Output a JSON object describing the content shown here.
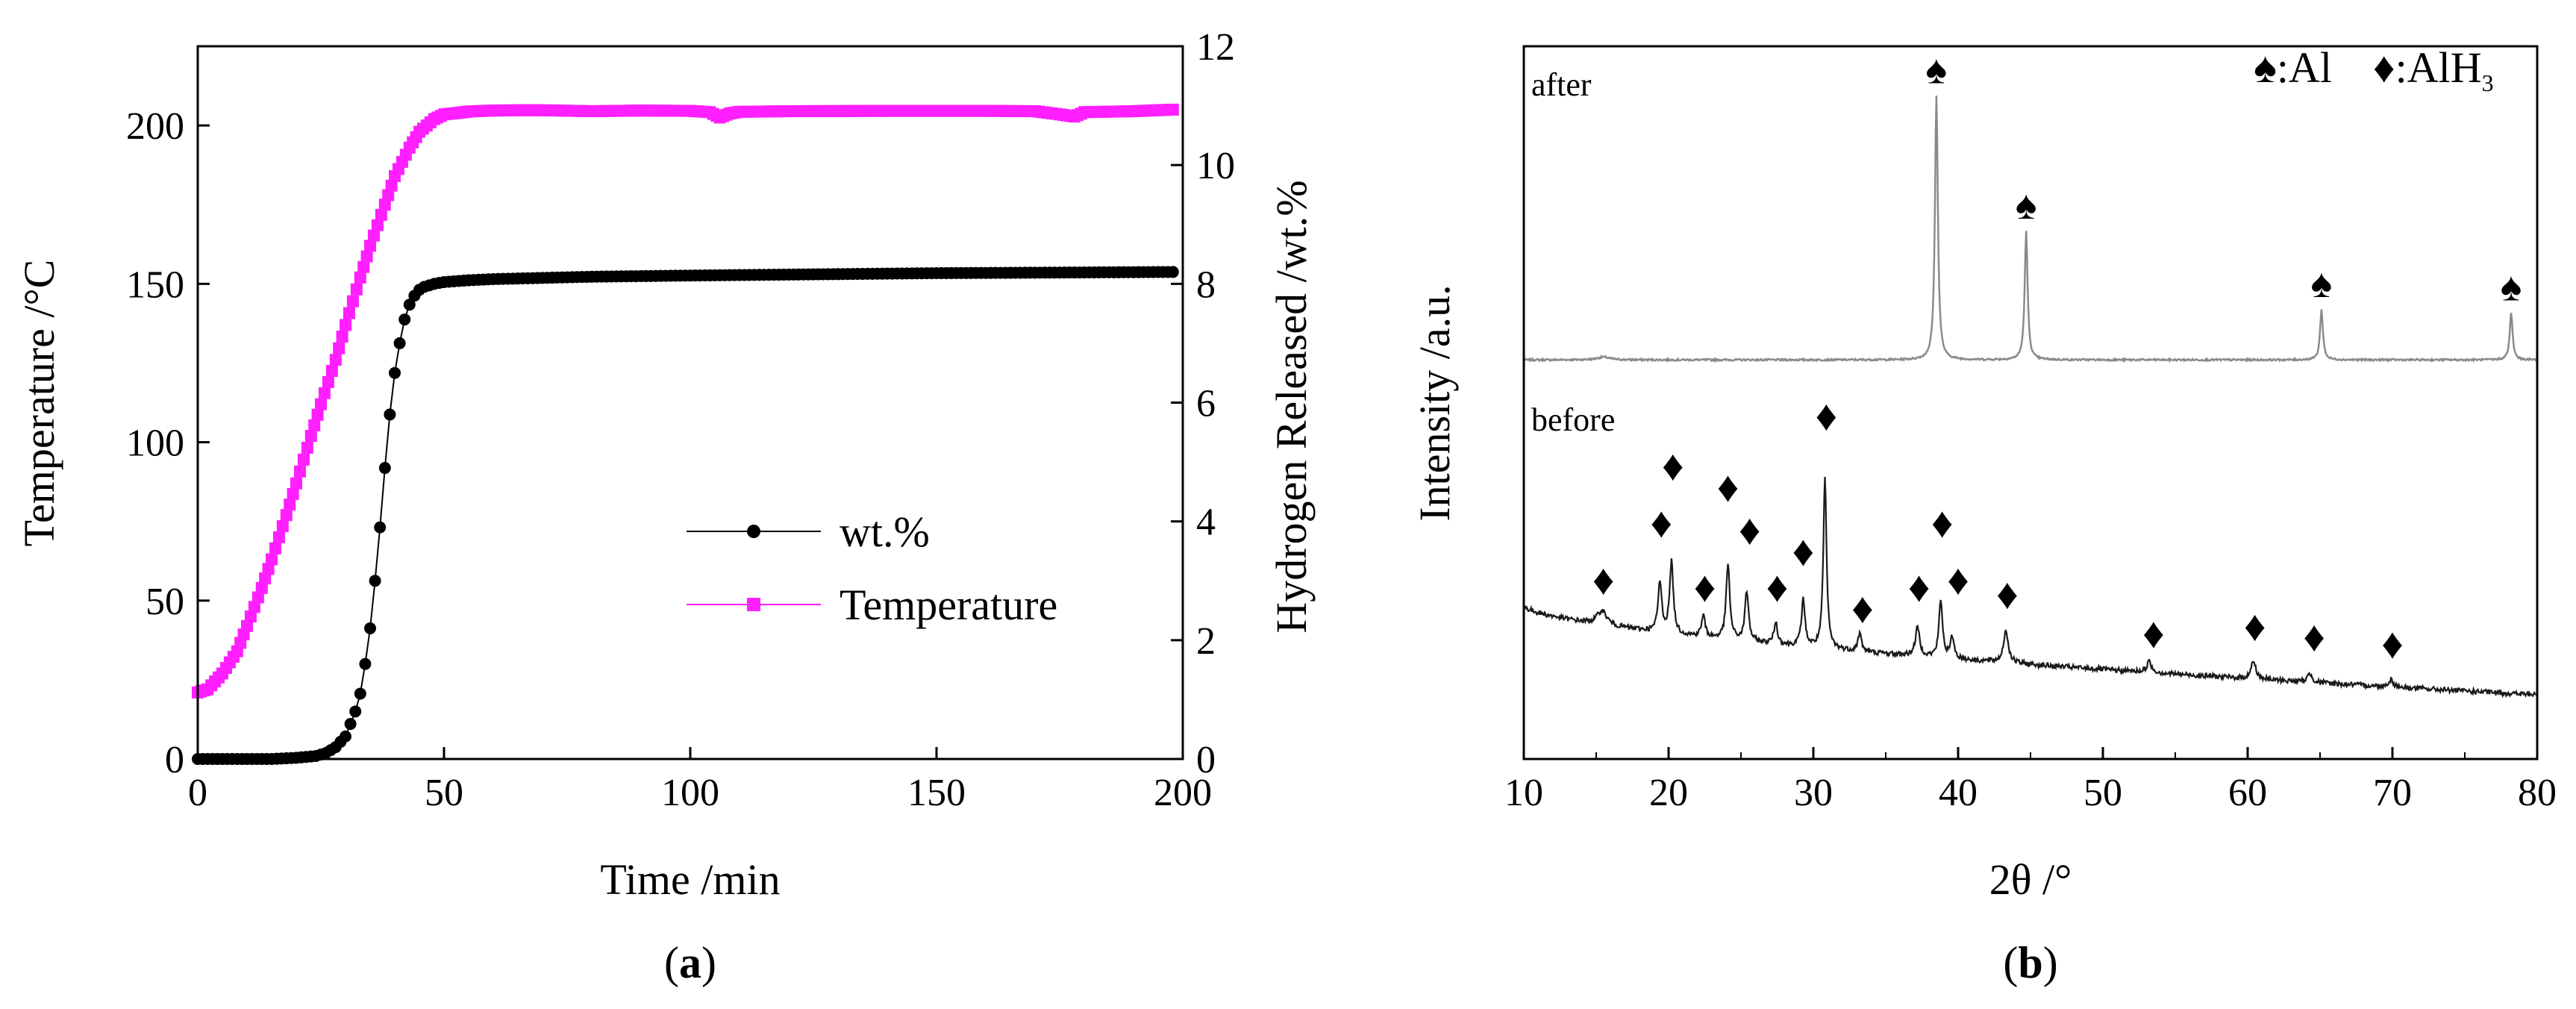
{
  "chart_data": [
    {
      "id": "a",
      "type": "line",
      "panel_label_open": "(",
      "panel_label_letter": "a",
      "panel_label_close": ")",
      "xlabel": "Time /min",
      "ylabel": "Temperature /°C",
      "y2label": "Hydrogen Released /wt.%",
      "xlim": [
        0,
        200
      ],
      "ylim": [
        0,
        225
      ],
      "y2lim": [
        0,
        12
      ],
      "xticks": [
        0,
        50,
        100,
        150,
        200
      ],
      "yticks": [
        0,
        50,
        100,
        150,
        200
      ],
      "y2ticks": [
        0,
        2,
        4,
        6,
        8,
        10,
        12
      ],
      "legend_position": "center-right",
      "series": [
        {
          "name": "wt.%",
          "axis": "right",
          "marker": "circle",
          "color": "#000000",
          "x": [
            0,
            5,
            10,
            15,
            20,
            24,
            26,
            28,
            30,
            32,
            33,
            34,
            35,
            36,
            37,
            38,
            39,
            40,
            41,
            42,
            43,
            44,
            45,
            46,
            48,
            50,
            55,
            60,
            70,
            80,
            100,
            125,
            150,
            175,
            198
          ],
          "y": [
            0,
            0,
            0,
            0,
            0.02,
            0.05,
            0.1,
            0.2,
            0.38,
            0.8,
            1.1,
            1.6,
            2.2,
            3.0,
            3.9,
            4.9,
            5.8,
            6.5,
            7.0,
            7.4,
            7.65,
            7.8,
            7.9,
            7.95,
            8.0,
            8.03,
            8.06,
            8.08,
            8.1,
            8.12,
            8.14,
            8.16,
            8.18,
            8.19,
            8.2
          ]
        },
        {
          "name": "Temperature",
          "axis": "left",
          "marker": "square",
          "color": "#ff1fff",
          "x": [
            0,
            2,
            5,
            8,
            10,
            13,
            15,
            18,
            20,
            23,
            25,
            28,
            30,
            33,
            35,
            38,
            40,
            43,
            45,
            48,
            50,
            53,
            55,
            58,
            60,
            65,
            70,
            80,
            90,
            100,
            104,
            106,
            108,
            110,
            120,
            140,
            160,
            170,
            175,
            178,
            180,
            190,
            198
          ],
          "y": [
            21,
            22,
            27,
            34,
            42,
            54,
            63,
            77,
            87,
            102,
            112,
            126,
            137,
            152,
            162,
            175,
            184,
            193,
            198,
            202,
            203.5,
            204,
            204.4,
            204.6,
            204.7,
            204.8,
            204.8,
            204.5,
            204.7,
            204.6,
            204.2,
            202.5,
            203.8,
            204.3,
            204.5,
            204.6,
            204.6,
            204.5,
            203.5,
            202.8,
            204.2,
            204.5,
            205
          ]
        }
      ]
    },
    {
      "id": "b",
      "type": "line",
      "panel_label_open": "(",
      "panel_label_letter": "b",
      "panel_label_close": ")",
      "xlabel": "2θ /°",
      "ylabel": "Intensity /a.u.",
      "xlim": [
        10,
        80
      ],
      "ylim": [
        0,
        100
      ],
      "xticks": [
        10,
        20,
        30,
        40,
        50,
        60,
        70,
        80
      ],
      "yticks": [],
      "legend_position": "top-right",
      "legend": {
        "al_symbol": "♠",
        "al_text": ":Al",
        "alh3_symbol": "♦",
        "alh3_text_main": ":AlH",
        "alh3_text_sub": "3"
      },
      "series": [
        {
          "name": "after",
          "color": "#8a8a8a",
          "baseline": 56,
          "peaks": [
            {
              "x": 15.5,
              "h": 0.4,
              "w": 0.5
            },
            {
              "x": 38.5,
              "h": 37,
              "w": 0.12
            },
            {
              "x": 44.7,
              "h": 18,
              "w": 0.12
            },
            {
              "x": 65.1,
              "h": 7,
              "w": 0.12
            },
            {
              "x": 78.2,
              "h": 6.5,
              "w": 0.12
            }
          ],
          "markers": [
            {
              "x": 38.5,
              "symbol": "♠"
            },
            {
              "x": 44.7,
              "symbol": "♠"
            },
            {
              "x": 65.1,
              "symbol": "♠"
            },
            {
              "x": 78.2,
              "symbol": "♠"
            }
          ]
        },
        {
          "name": "before",
          "color": "#1a1a1a",
          "baseline_start": 21.5,
          "baseline_end": 9,
          "peaks": [
            {
              "x": 15.4,
              "h": 2,
              "w": 0.4
            },
            {
              "x": 19.4,
              "h": 7,
              "w": 0.15
            },
            {
              "x": 20.2,
              "h": 10,
              "w": 0.15
            },
            {
              "x": 22.4,
              "h": 3,
              "w": 0.15
            },
            {
              "x": 24.1,
              "h": 10.5,
              "w": 0.15
            },
            {
              "x": 25.4,
              "h": 7,
              "w": 0.15
            },
            {
              "x": 27.4,
              "h": 3,
              "w": 0.15
            },
            {
              "x": 29.3,
              "h": 6.5,
              "w": 0.15
            },
            {
              "x": 30.8,
              "h": 24,
              "w": 0.13
            },
            {
              "x": 33.2,
              "h": 2.5,
              "w": 0.15
            },
            {
              "x": 37.2,
              "h": 4,
              "w": 0.18
            },
            {
              "x": 38.8,
              "h": 8,
              "w": 0.15
            },
            {
              "x": 39.6,
              "h": 3,
              "w": 0.15
            },
            {
              "x": 43.3,
              "h": 4.5,
              "w": 0.2
            },
            {
              "x": 53.2,
              "h": 1.5,
              "w": 0.2
            },
            {
              "x": 60.4,
              "h": 2.5,
              "w": 0.2
            },
            {
              "x": 64.3,
              "h": 1.2,
              "w": 0.2
            },
            {
              "x": 69.9,
              "h": 1,
              "w": 0.2
            }
          ],
          "markers": [
            {
              "x": 15.5,
              "y": 25.0,
              "symbol": "♦"
            },
            {
              "x": 19.5,
              "y": 33.0,
              "symbol": "♦"
            },
            {
              "x": 20.3,
              "y": 41.0,
              "symbol": "♦"
            },
            {
              "x": 22.5,
              "y": 24.0,
              "symbol": "♦"
            },
            {
              "x": 24.1,
              "y": 38.0,
              "symbol": "♦"
            },
            {
              "x": 25.6,
              "y": 32.0,
              "symbol": "♦"
            },
            {
              "x": 27.5,
              "y": 24.0,
              "symbol": "♦"
            },
            {
              "x": 29.3,
              "y": 29.0,
              "symbol": "♦"
            },
            {
              "x": 30.9,
              "y": 48.0,
              "symbol": "♦"
            },
            {
              "x": 33.4,
              "y": 21.0,
              "symbol": "♦"
            },
            {
              "x": 37.3,
              "y": 24.0,
              "symbol": "♦"
            },
            {
              "x": 38.9,
              "y": 33.0,
              "symbol": "♦"
            },
            {
              "x": 40.0,
              "y": 25.0,
              "symbol": "♦"
            },
            {
              "x": 43.4,
              "y": 23.0,
              "symbol": "♦"
            },
            {
              "x": 53.5,
              "y": 17.5,
              "symbol": "♦"
            },
            {
              "x": 60.5,
              "y": 18.5,
              "symbol": "♦"
            },
            {
              "x": 64.6,
              "y": 17.0,
              "symbol": "♦"
            },
            {
              "x": 70.0,
              "y": 16.0,
              "symbol": "♦"
            }
          ]
        }
      ]
    }
  ]
}
